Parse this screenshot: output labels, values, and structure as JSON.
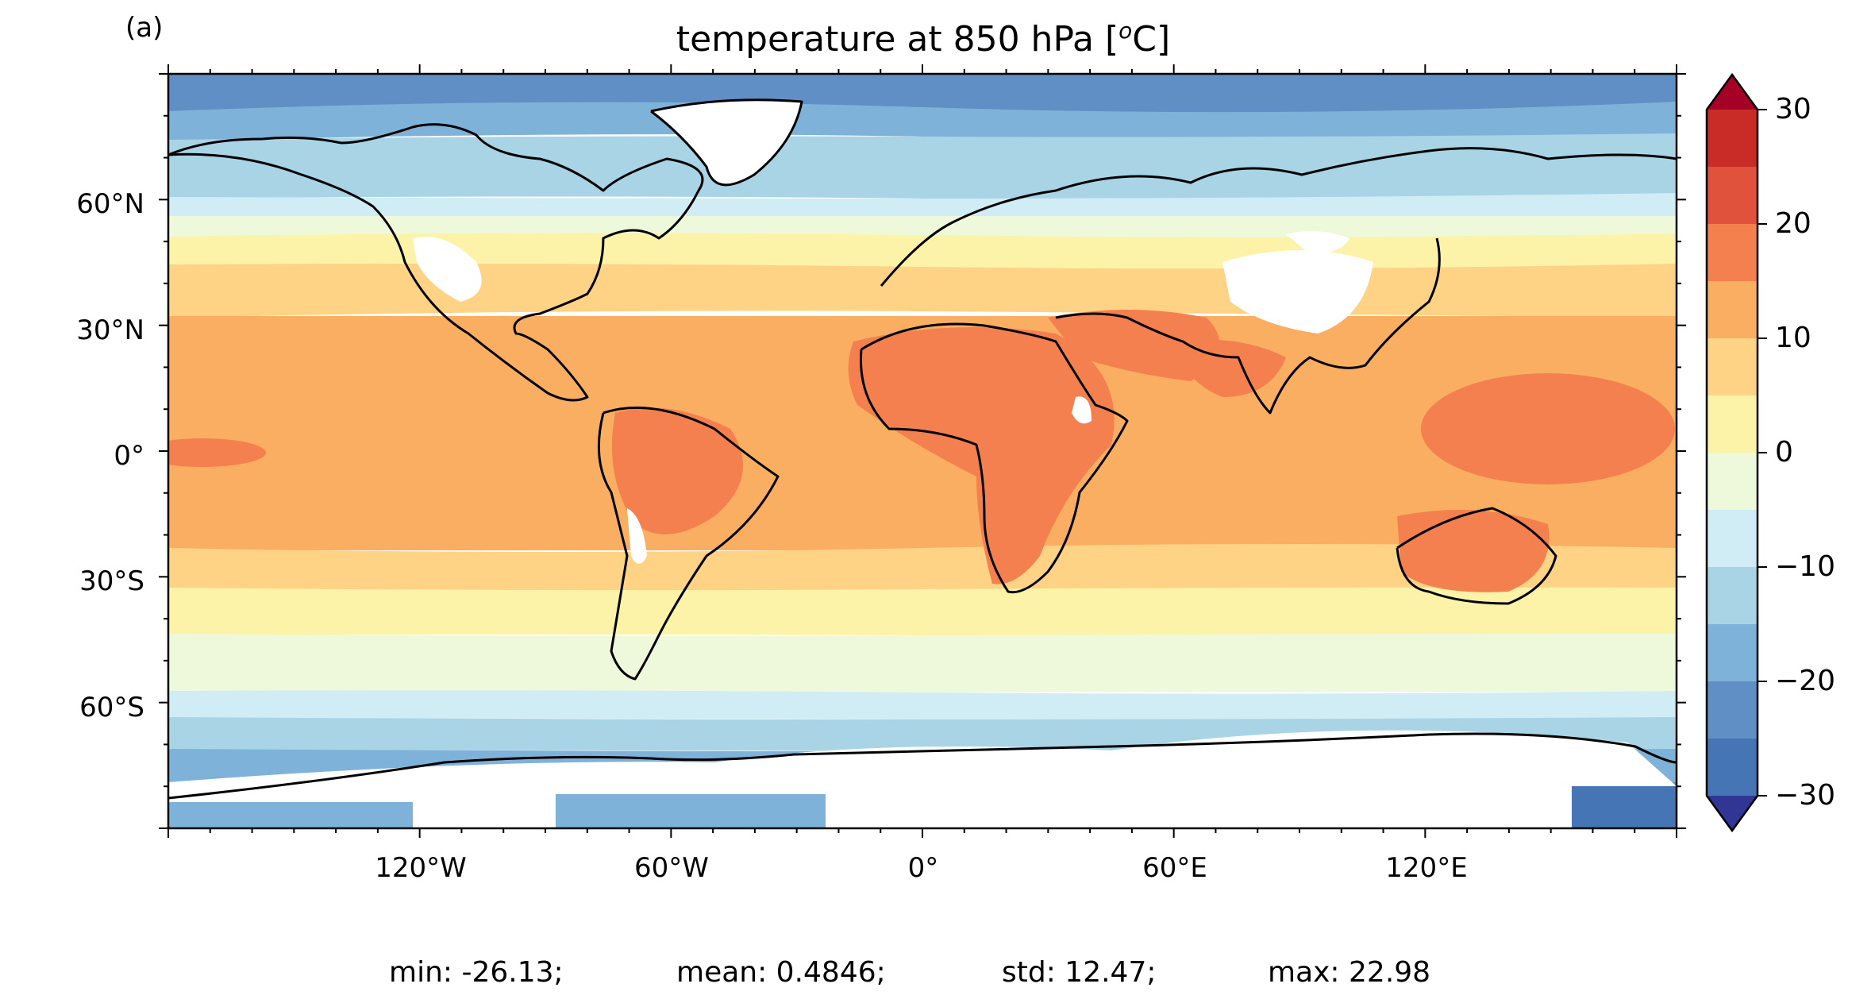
{
  "panel_label": "(a)",
  "title": "temperature at 850 hPa [°C]",
  "title_parts": {
    "pre": "temperature at 850 hPa [",
    "sup": "o",
    "post": "C]"
  },
  "lat_ticks": [
    "60°N",
    "30°N",
    "0°",
    "30°S",
    "60°S"
  ],
  "lon_ticks": [
    "120°W",
    "60°W",
    "0°",
    "60°E",
    "120°E"
  ],
  "colorbar": {
    "ticks": [
      "30",
      "20",
      "10",
      "0",
      "−10",
      "−20",
      "−30"
    ],
    "levels": [
      -30,
      -25,
      -20,
      -15,
      -10,
      -5,
      0,
      5,
      10,
      15,
      20,
      25,
      30
    ],
    "colors": [
      "#313695",
      "#4575b4",
      "#5f8fc4",
      "#7fb2d8",
      "#a8d4e6",
      "#d0ecf4",
      "#eef8da",
      "#fdf3a8",
      "#fed386",
      "#f9ae61",
      "#f4804f",
      "#e0523c",
      "#c92b27",
      "#a50026"
    ],
    "under": "#313695",
    "over": "#a50026"
  },
  "stats": {
    "min": "min: -26.13;",
    "mean": "mean: 0.4846;",
    "std": "std: 12.47;",
    "max": "max: 22.98"
  },
  "colors": {
    "land_missing": "#ffffff",
    "coast": "#000000"
  }
}
